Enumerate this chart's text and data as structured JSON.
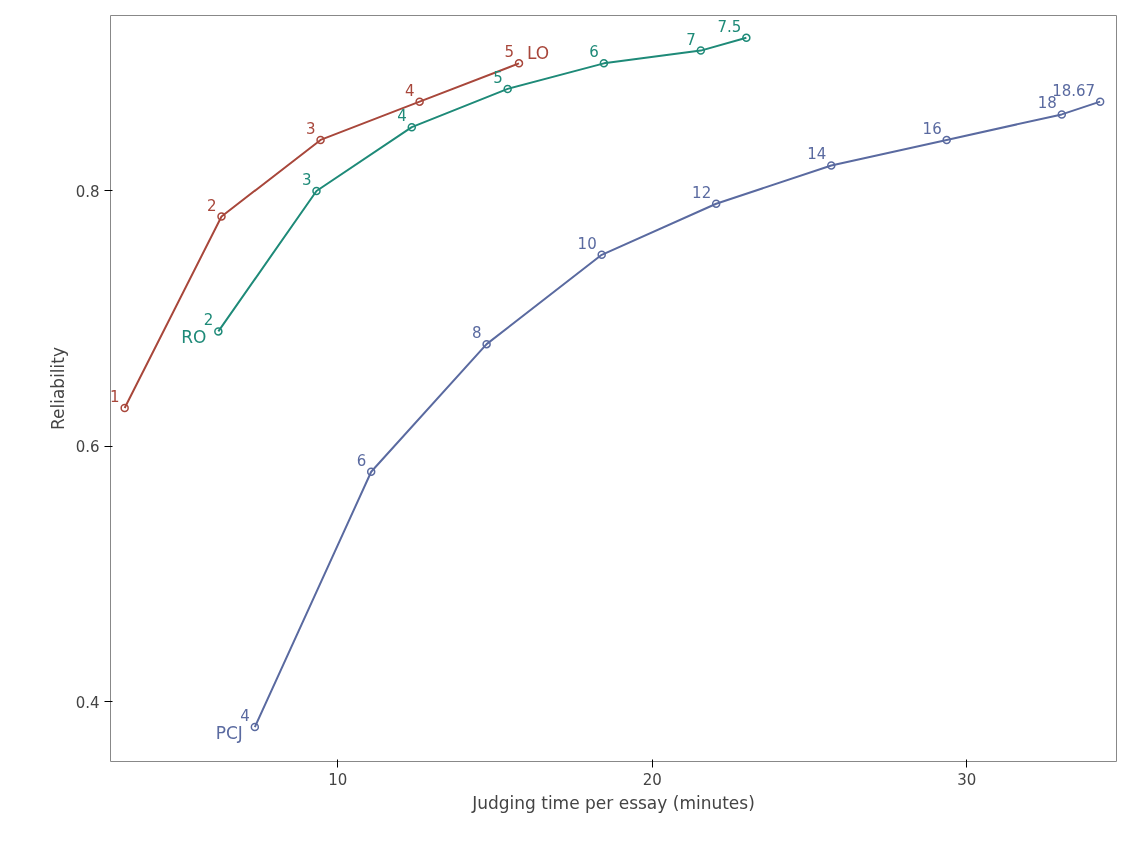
{
  "chart_data": {
    "type": "line",
    "xlabel": "Judging time per essay (minutes)",
    "ylabel": "Reliability",
    "xlim": [
      2.77,
      34.76
    ],
    "ylim": [
      0.353,
      0.9375
    ],
    "xticks": [
      10,
      20,
      30
    ],
    "yticks": [
      0.4,
      0.6,
      0.8
    ],
    "grid": false,
    "marker": "circle",
    "line_style": "solid",
    "series": [
      {
        "name": "LO",
        "color": "#a8473b",
        "x": [
          3.22,
          6.3,
          9.45,
          12.6,
          15.76
        ],
        "values": [
          0.63,
          0.78,
          0.84,
          0.87,
          0.9
        ]
      },
      {
        "name": "RO",
        "color": "#1e8a78",
        "x": [
          6.2,
          9.32,
          12.35,
          15.4,
          18.46,
          21.54,
          22.99
        ],
        "values": [
          0.69,
          0.8,
          0.85,
          0.88,
          0.9,
          0.91,
          0.92
        ]
      },
      {
        "name": "PCJ",
        "color": "#5a6aa0",
        "x": [
          7.36,
          11.06,
          14.73,
          18.39,
          22.03,
          25.69,
          29.36,
          33.02,
          34.24
        ],
        "values": [
          0.38,
          0.58,
          0.68,
          0.75,
          0.79,
          0.82,
          0.84,
          0.86,
          0.87
        ]
      }
    ],
    "annotations": [
      {
        "text": "1",
        "x": 3.22,
        "y": 0.63
      },
      {
        "text": "2",
        "x": 6.3,
        "y": 0.78
      },
      {
        "text": "3",
        "x": 9.45,
        "y": 0.84
      },
      {
        "text": "4",
        "x": 12.6,
        "y": 0.87
      },
      {
        "text": "5",
        "x": 15.76,
        "y": 0.9
      },
      {
        "text": "2",
        "x": 6.2,
        "y": 0.69
      },
      {
        "text": "3",
        "x": 9.32,
        "y": 0.8
      },
      {
        "text": "4",
        "x": 12.35,
        "y": 0.85
      },
      {
        "text": "5",
        "x": 15.4,
        "y": 0.88
      },
      {
        "text": "6",
        "x": 18.46,
        "y": 0.9
      },
      {
        "text": "7",
        "x": 21.54,
        "y": 0.91
      },
      {
        "text": "7.5",
        "x": 22.99,
        "y": 0.92
      },
      {
        "text": "4",
        "x": 7.36,
        "y": 0.38
      },
      {
        "text": "6",
        "x": 11.06,
        "y": 0.58
      },
      {
        "text": "8",
        "x": 14.73,
        "y": 0.68
      },
      {
        "text": "10",
        "x": 18.39,
        "y": 0.75
      },
      {
        "text": "12",
        "x": 22.03,
        "y": 0.79
      },
      {
        "text": "14",
        "x": 25.69,
        "y": 0.82
      },
      {
        "text": "16",
        "x": 29.36,
        "y": 0.84
      },
      {
        "text": "18",
        "x": 33.02,
        "y": 0.86
      },
      {
        "text": "18.67",
        "x": 34.24,
        "y": 0.87
      }
    ]
  }
}
